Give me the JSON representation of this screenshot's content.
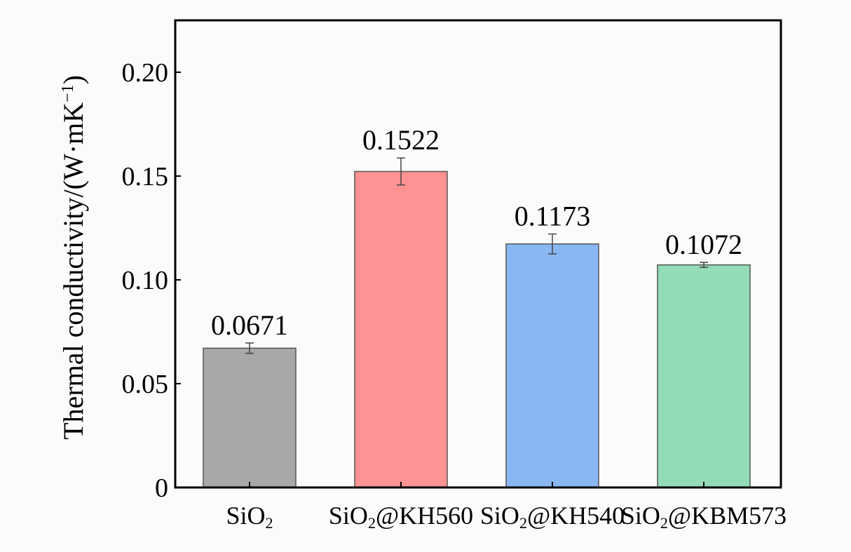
{
  "chart_data": {
    "type": "bar",
    "categories": [
      {
        "base": "SiO",
        "sub": "2",
        "rest": ""
      },
      {
        "base": "SiO",
        "sub": "2",
        "rest": "@KH560"
      },
      {
        "base": "SiO",
        "sub": "2",
        "rest": "@KH540"
      },
      {
        "base": "SiO",
        "sub": "2",
        "rest": "@KBM573"
      }
    ],
    "values": [
      0.0671,
      0.1522,
      0.1173,
      0.1072
    ],
    "errors": [
      0.0025,
      0.0065,
      0.0048,
      0.0012
    ],
    "value_labels": [
      "0.0671",
      "0.1522",
      "0.1173",
      "0.1072"
    ],
    "colors": [
      "#a8a8a8",
      "#ff9293",
      "#88b7f3",
      "#93dcb7"
    ],
    "ylabel": {
      "text": "Thermal conductivity/(W·mK",
      "sup": "−1",
      "close": ")"
    },
    "yticks": [
      0,
      0.05,
      0.1,
      0.15,
      0.2
    ],
    "ytick_labels": [
      "0",
      "0.05",
      "0.10",
      "0.15",
      "0.20"
    ],
    "ylim": [
      0,
      0.225
    ],
    "grid": false,
    "legend": "none"
  }
}
